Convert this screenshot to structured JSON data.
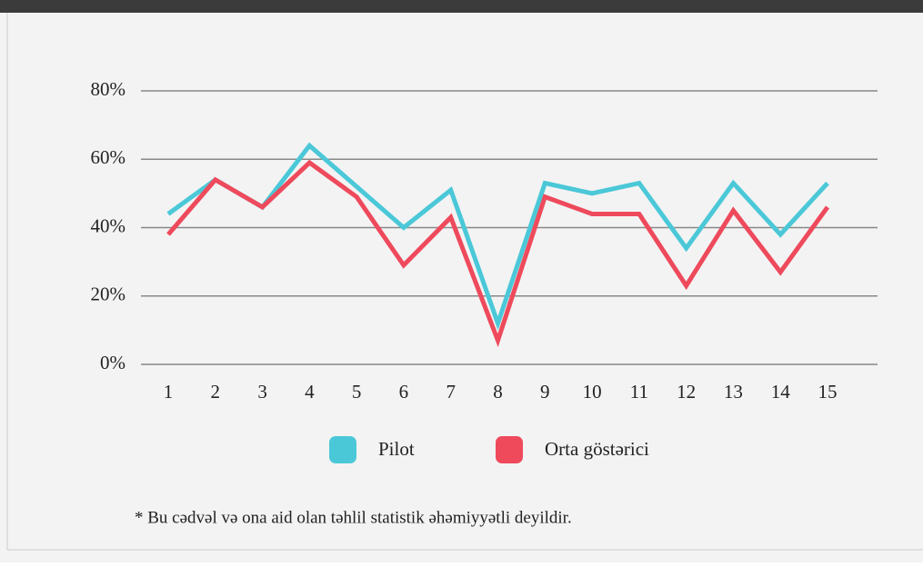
{
  "chart_data": {
    "type": "line",
    "categories": [
      "1",
      "2",
      "3",
      "4",
      "5",
      "6",
      "7",
      "8",
      "9",
      "10",
      "11",
      "12",
      "13",
      "14",
      "15"
    ],
    "series": [
      {
        "name": "Pilot",
        "color": "#4bc8d8",
        "values": [
          44,
          54,
          46,
          64,
          52,
          40,
          51,
          12,
          53,
          50,
          53,
          34,
          53,
          38,
          53
        ]
      },
      {
        "name": "Orta göstərici",
        "color": "#ee4a5c",
        "values": [
          38,
          54,
          46,
          59,
          49,
          29,
          43,
          7,
          49,
          44,
          44,
          23,
          45,
          27,
          46
        ]
      }
    ],
    "ylim": [
      0,
      80
    ],
    "yticks": [
      {
        "value": 0,
        "label": "0%"
      },
      {
        "value": 20,
        "label": "20%"
      },
      {
        "value": 40,
        "label": "40%"
      },
      {
        "value": 60,
        "label": "60%"
      },
      {
        "value": 80,
        "label": "80%"
      }
    ],
    "grid": true,
    "legend": "bottom",
    "note": "* Bu cədvəl və ona aid olan təhlil statistik əhəmiyyətli deyildir."
  }
}
